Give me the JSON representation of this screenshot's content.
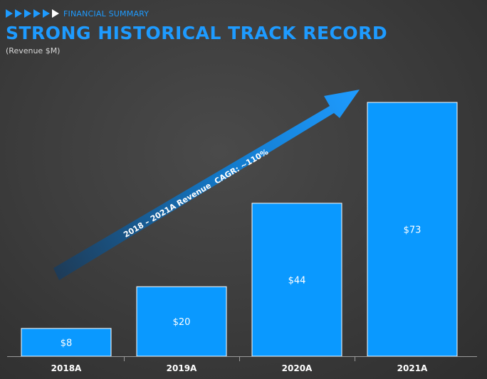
{
  "header": {
    "eyebrow": "FINANCIAL SUMMARY",
    "title": "STRONG HISTORICAL TRACK RECORD",
    "subtitle": "(Revenue $M)"
  },
  "colors": {
    "accent": "#1e9bff",
    "bar": "#0a99ff",
    "background": "#3a3a3a",
    "axis_text": "#ffffff"
  },
  "chart_data": {
    "type": "bar",
    "title": "STRONG HISTORICAL TRACK RECORD",
    "ylabel": "(Revenue $M)",
    "categories": [
      "2018A",
      "2019A",
      "2020A",
      "2021A"
    ],
    "values": [
      8,
      20,
      44,
      73
    ],
    "data_labels": [
      "$8",
      "$20",
      "$44",
      "$73"
    ],
    "ylim": [
      0,
      80
    ],
    "grid": false,
    "legend": "none",
    "annotation": "2018 – 2021A Revenue  CAGR: ~110%"
  }
}
